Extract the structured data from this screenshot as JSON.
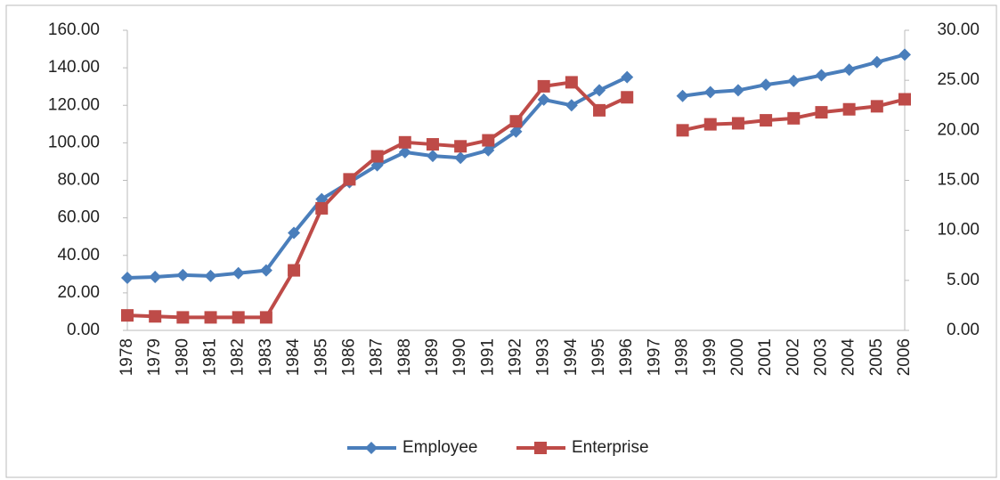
{
  "chart_data": {
    "type": "line",
    "categories": [
      "1978",
      "1979",
      "1980",
      "1981",
      "1982",
      "1983",
      "1984",
      "1985",
      "1986",
      "1987",
      "1988",
      "1989",
      "1990",
      "1991",
      "1992",
      "1993",
      "1994",
      "1995",
      "1996",
      "1997",
      "1998",
      "1999",
      "2000",
      "2001",
      "2002",
      "2003",
      "2004",
      "2005",
      "2006"
    ],
    "series": [
      {
        "name": "Employee",
        "color": "#4a7ebb",
        "marker": "diamond",
        "values": [
          28,
          28.5,
          29.5,
          29,
          30.5,
          32,
          52,
          70,
          79,
          88,
          95,
          93,
          92,
          96,
          106,
          123,
          120,
          128,
          135,
          null,
          125,
          127,
          128,
          131,
          133,
          136,
          139,
          143,
          147
        ]
      },
      {
        "name": "Enterprise",
        "color": "#be4b48",
        "marker": "square",
        "axis": "y2",
        "values": [
          1.5,
          1.4,
          1.3,
          1.3,
          1.3,
          1.3,
          6.0,
          12.2,
          15.1,
          17.4,
          18.8,
          18.6,
          18.4,
          19.0,
          20.9,
          24.4,
          24.8,
          22.0,
          23.3,
          null,
          20.0,
          20.6,
          20.7,
          21.0,
          21.2,
          21.8,
          22.1,
          22.4,
          23.1
        ]
      }
    ],
    "ylim": [
      0,
      160
    ],
    "yticks": [
      {
        "value": 0,
        "label": "0.00"
      },
      {
        "value": 20,
        "label": "20.00"
      },
      {
        "value": 40,
        "label": "40.00"
      },
      {
        "value": 60,
        "label": "60.00"
      },
      {
        "value": 80,
        "label": "80.00"
      },
      {
        "value": 100,
        "label": "100.00"
      },
      {
        "value": 120,
        "label": "120.00"
      },
      {
        "value": 140,
        "label": "140.00"
      },
      {
        "value": 160,
        "label": "160.00"
      }
    ],
    "y2lim": [
      0,
      30
    ],
    "y2ticks": [
      {
        "value": 0,
        "label": "0.00"
      },
      {
        "value": 5,
        "label": "5.00"
      },
      {
        "value": 10,
        "label": "10.00"
      },
      {
        "value": 15,
        "label": "15.00"
      },
      {
        "value": 20,
        "label": "20.00"
      },
      {
        "value": 25,
        "label": "25.00"
      },
      {
        "value": 30,
        "label": "30.00"
      }
    ],
    "legend": "bottom"
  }
}
